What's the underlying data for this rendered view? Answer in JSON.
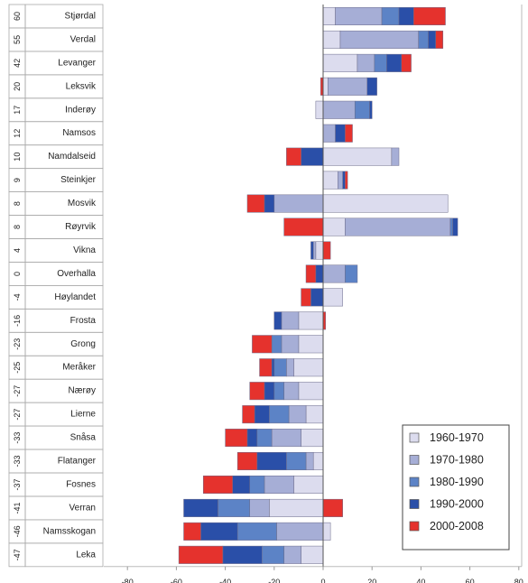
{
  "chart_data": {
    "type": "bar",
    "orientation": "horizontal",
    "stacked": "diverging",
    "title": "",
    "xlabel": "",
    "ylabel": "",
    "xlim": [
      -80,
      80
    ],
    "xticks": [
      -80,
      -60,
      -40,
      -20,
      0,
      20,
      40,
      60,
      80
    ],
    "legend_position": "bottom-right",
    "grid": false,
    "categories": [
      "Stjørdal",
      "Verdal",
      "Levanger",
      "Leksvik",
      "Inderøy",
      "Namsos",
      "Namdalseid",
      "Steinkjer",
      "Mosvik",
      "Røyrvik",
      "Vikna",
      "Overhalla",
      "Høylandet",
      "Frosta",
      "Grong",
      "Meråker",
      "Nærøy",
      "Lierne",
      "Snåsa",
      "Flatanger",
      "Fosnes",
      "Verran",
      "Namsskogan",
      "Leka"
    ],
    "row_numbers": [
      "60",
      "55",
      "42",
      "20",
      "17",
      "12",
      "10",
      "9",
      "8",
      "8",
      "4",
      "0",
      "-4",
      "-16",
      "-23",
      "-25",
      "-27",
      "-27",
      "-33",
      "-33",
      "-37",
      "-41",
      "-46",
      "-47"
    ],
    "series": [
      {
        "name": "1960-1970",
        "color": "#dcdcee",
        "values": [
          5,
          7,
          14,
          2,
          -3,
          0,
          28,
          6,
          51,
          9,
          -3,
          0,
          8,
          -10,
          -10,
          -12,
          -10,
          -7,
          -9,
          -4,
          -12,
          -22,
          3,
          -9
        ]
      },
      {
        "name": "1970-1980",
        "color": "#a6aed6",
        "values": [
          19,
          32,
          7,
          16,
          13,
          5,
          3,
          2,
          -20,
          43,
          -1,
          9,
          0,
          -7,
          -7,
          -3,
          -6,
          -7,
          -12,
          -3,
          -12,
          -8,
          -19,
          -7
        ]
      },
      {
        "name": "1980-1990",
        "color": "#5c83c6",
        "values": [
          7,
          4,
          5,
          0,
          6,
          0,
          0,
          0,
          0,
          1,
          0,
          5,
          0,
          0,
          -4,
          -5,
          -4,
          -8,
          -6,
          -8,
          -6,
          -13,
          -16,
          -9
        ]
      },
      {
        "name": "1990-2000",
        "color": "#2a4fa8",
        "values": [
          6,
          3,
          6,
          4,
          1,
          4,
          -9,
          1,
          -4,
          2,
          -1,
          -3,
          -5,
          -3,
          0,
          -1,
          -4,
          -6,
          -4,
          -12,
          -7,
          -14,
          -15,
          -16
        ]
      },
      {
        "name": "2000-2008",
        "color": "#e5322d",
        "values": [
          13,
          3,
          4,
          -1,
          0,
          3,
          -6,
          1,
          -7,
          -16,
          3,
          -4,
          -4,
          1,
          -8,
          -5,
          -6,
          -5,
          -9,
          -8,
          -12,
          8,
          -7,
          -18
        ]
      }
    ]
  }
}
